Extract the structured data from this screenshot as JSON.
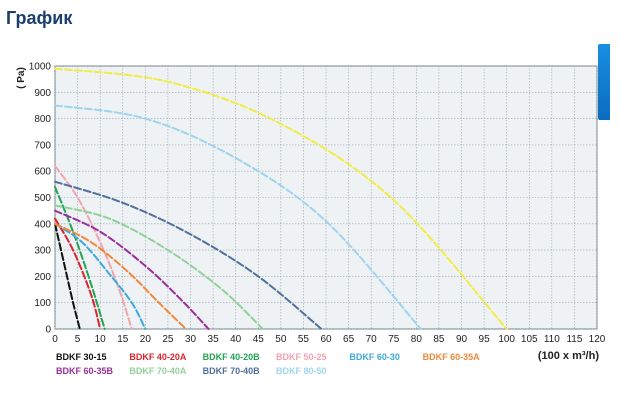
{
  "page": {
    "title": "График"
  },
  "colors": {
    "title": "#1d3f6e",
    "plot_bg": "#eef2f4",
    "grid": "#9aa6ad",
    "accent": "#1a8fe0"
  },
  "chart_data": {
    "type": "line",
    "ylabel": "( Pa)",
    "xlabel": "(100 x m³/h)",
    "xlim": [
      0,
      120
    ],
    "ylim": [
      0,
      1000
    ],
    "xticks": [
      0,
      5,
      10,
      15,
      20,
      25,
      30,
      35,
      40,
      45,
      50,
      55,
      60,
      65,
      70,
      75,
      80,
      85,
      90,
      95,
      100,
      105,
      110,
      115,
      120
    ],
    "yticks": [
      0,
      100,
      200,
      300,
      400,
      500,
      600,
      700,
      800,
      900,
      1000
    ],
    "grid": true,
    "legend_position": "bottom",
    "series": [
      {
        "name": "BDKF 30-15",
        "color": "#111111",
        "x": [
          0,
          2,
          4,
          5.5
        ],
        "y": [
          400,
          250,
          100,
          0
        ]
      },
      {
        "name": "BDKF 40-20A",
        "color": "#d9262e",
        "x": [
          0,
          4,
          8,
          10
        ],
        "y": [
          420,
          300,
          130,
          0
        ]
      },
      {
        "name": "BDKF 40-20B",
        "color": "#21a453",
        "x": [
          0,
          4,
          8,
          11
        ],
        "y": [
          540,
          370,
          170,
          0
        ]
      },
      {
        "name": "BDKF 50-25",
        "color": "#f2a3b0",
        "x": [
          0,
          5,
          10,
          14,
          17
        ],
        "y": [
          620,
          500,
          330,
          160,
          0
        ]
      },
      {
        "name": "BDKF 60-30",
        "color": "#3fa9dc",
        "x": [
          0,
          6,
          12,
          17,
          20
        ],
        "y": [
          400,
          330,
          210,
          100,
          0
        ]
      },
      {
        "name": "BDKF 60-35A",
        "color": "#f0883a",
        "x": [
          0,
          8,
          16,
          23,
          29
        ],
        "y": [
          400,
          330,
          220,
          100,
          0
        ]
      },
      {
        "name": "BDKF 60-35B",
        "color": "#9b2f9a",
        "x": [
          0,
          10,
          20,
          28,
          34
        ],
        "y": [
          450,
          370,
          240,
          110,
          0
        ]
      },
      {
        "name": "BDKF 70-40A",
        "color": "#93d19a",
        "x": [
          0,
          12,
          25,
          37,
          46
        ],
        "y": [
          470,
          420,
          300,
          150,
          0
        ]
      },
      {
        "name": "BDKF 70-40B",
        "color": "#51709e",
        "x": [
          0,
          15,
          30,
          45,
          59
        ],
        "y": [
          560,
          480,
          360,
          200,
          0
        ]
      },
      {
        "name": "BDKF 80-50",
        "color": "#9fd4ee",
        "x": [
          0,
          20,
          40,
          60,
          81
        ],
        "y": [
          850,
          800,
          650,
          410,
          0
        ]
      },
      {
        "name": "",
        "color": "#f3ec45",
        "x": [
          0,
          25,
          50,
          75,
          100
        ],
        "y": [
          990,
          940,
          780,
          490,
          0
        ]
      }
    ]
  }
}
